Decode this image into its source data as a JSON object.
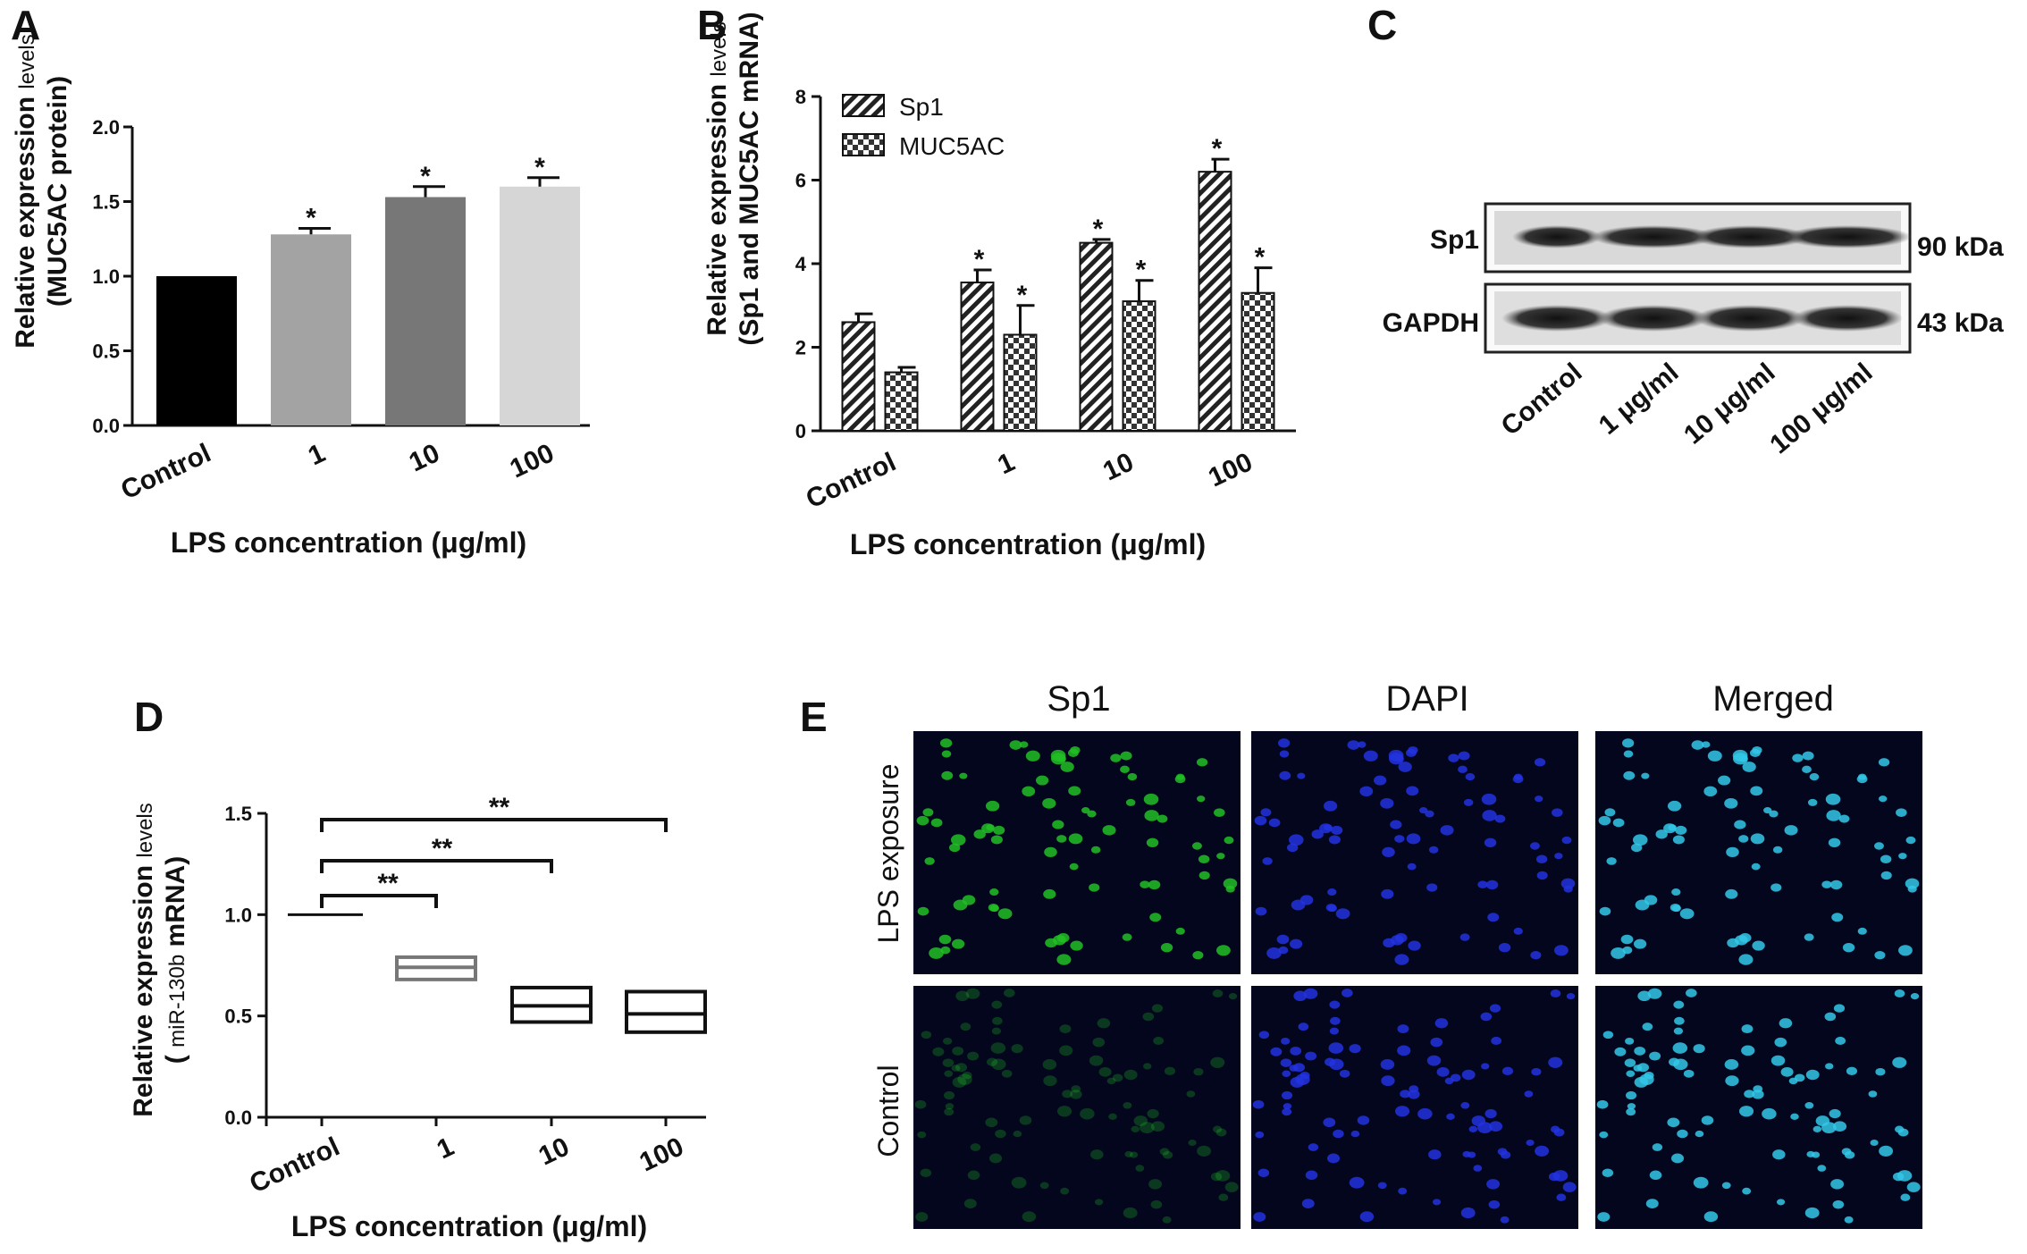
{
  "chart_data": [
    {
      "panel": "A",
      "type": "bar",
      "categories": [
        "Control",
        "1",
        "10",
        "100"
      ],
      "values": [
        1.0,
        1.28,
        1.53,
        1.6
      ],
      "errors": [
        0.0,
        0.04,
        0.07,
        0.06
      ],
      "significance": [
        "",
        "*",
        "*",
        "*"
      ],
      "colors": [
        "#000000",
        "#a3a3a3",
        "#777777",
        "#d6d6d6"
      ],
      "xlabel": "LPS concentration (μg/ml)",
      "ylabel_line1_main": "Relative expression ",
      "ylabel_line1_small": "levels",
      "ylabel_line2": "(MUC5AC protein)",
      "ylim": [
        0,
        2.0
      ],
      "yticks": [
        "0.0",
        "0.5",
        "1.0",
        "1.5",
        "2.0"
      ]
    },
    {
      "panel": "B",
      "type": "bar",
      "categories": [
        "Control",
        "1",
        "10",
        "100"
      ],
      "series": [
        {
          "name": "Sp1",
          "values": [
            2.6,
            3.55,
            4.5,
            6.2
          ],
          "errors": [
            0.2,
            0.3,
            0.08,
            0.3
          ],
          "significance": [
            "",
            "*",
            "*",
            "*"
          ],
          "pattern": "hatch"
        },
        {
          "name": "MUC5AC",
          "values": [
            1.4,
            2.3,
            3.1,
            3.3
          ],
          "errors": [
            0.12,
            0.7,
            0.5,
            0.6
          ],
          "significance": [
            "",
            "*",
            "*",
            "*"
          ],
          "pattern": "checker"
        }
      ],
      "xlabel": "LPS concentration (μg/ml)",
      "ylabel_line1_main": "Relative expression ",
      "ylabel_line1_small": "levels",
      "ylabel_line2": "(Sp1 and MUC5AC mRNA)",
      "ylim": [
        0,
        8
      ],
      "yticks": [
        "0",
        "2",
        "4",
        "6",
        "8"
      ],
      "legend_position": "top-left"
    },
    {
      "panel": "C",
      "type": "other",
      "description_kind": "western-blot",
      "rows": [
        {
          "protein": "Sp1",
          "size": "90 kDa"
        },
        {
          "protein": "GAPDH",
          "size": "43 kDa"
        }
      ],
      "lanes": [
        "Control",
        "1 μg/ml",
        "10 μg/ml",
        "100 μg/ml"
      ]
    },
    {
      "panel": "D",
      "type": "box",
      "categories": [
        "Control",
        "1",
        "10",
        "100"
      ],
      "boxes": [
        {
          "min": 1.0,
          "median": 1.0,
          "max": 1.0
        },
        {
          "min": 0.68,
          "median": 0.74,
          "max": 0.79
        },
        {
          "min": 0.47,
          "median": 0.55,
          "max": 0.64
        },
        {
          "min": 0.42,
          "median": 0.51,
          "max": 0.62
        }
      ],
      "comparisons": [
        {
          "from": 0,
          "to": 1,
          "label": "**"
        },
        {
          "from": 0,
          "to": 2,
          "label": "**"
        },
        {
          "from": 0,
          "to": 3,
          "label": "**"
        }
      ],
      "xlabel": "LPS concentration (μg/ml)",
      "ylabel_line1_main": "Relative expression ",
      "ylabel_line1_small": "levels",
      "ylabel_line2_main": "( ",
      "ylabel_line2_small": "miR-130b",
      "ylabel_line2_end": "  mRNA)",
      "ylim": [
        0,
        1.5
      ],
      "yticks": [
        "0.0",
        "0.5",
        "1.0",
        "1.5"
      ]
    },
    {
      "panel": "E",
      "type": "other",
      "description_kind": "fluorescence-micrographs",
      "columns": [
        "Sp1",
        "DAPI",
        "Merged"
      ],
      "rows": [
        "LPS exposure",
        "Control"
      ]
    }
  ],
  "panel_labels": [
    "A",
    "B",
    "C",
    "D",
    "E"
  ],
  "colors": {
    "sp1_green": "#22c025",
    "dapi_blue": "#2233e0",
    "merged_cyan": "#33c8e8",
    "micro_bg": "#04061e"
  }
}
